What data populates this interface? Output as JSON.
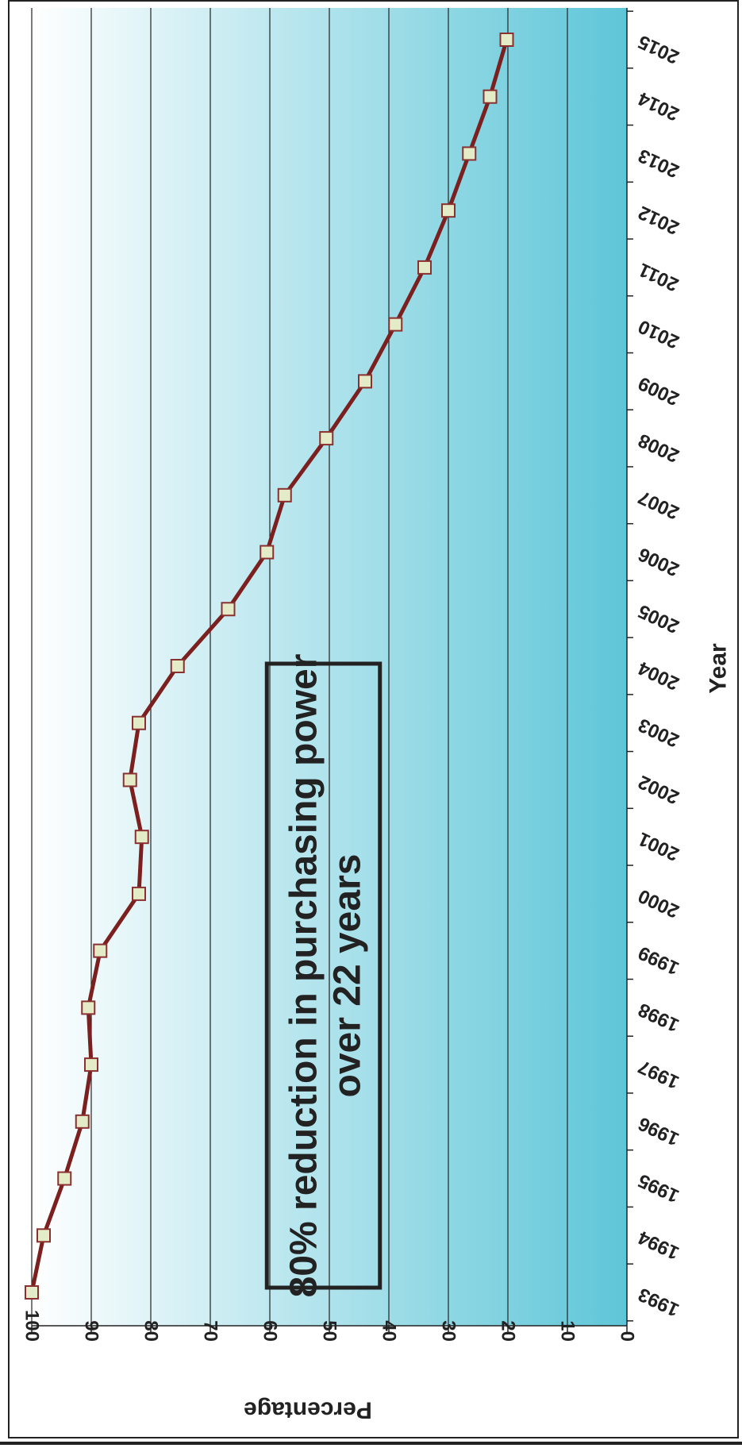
{
  "chart_data": {
    "type": "line",
    "orientation": "rotated-90-clockwise",
    "title": "",
    "xlabel": "Year",
    "ylabel": "Percentage",
    "ylim": [
      0,
      100
    ],
    "yticks": [
      "0",
      "10",
      "20",
      "30",
      "40",
      "50",
      "60",
      "70",
      "80",
      "90",
      "100"
    ],
    "categories": [
      "1993",
      "1994",
      "1995",
      "1996",
      "1997",
      "1998",
      "1999",
      "2000",
      "2001",
      "2002",
      "2003",
      "2004",
      "2005",
      "2006",
      "2007",
      "2008",
      "2009",
      "2010",
      "2011",
      "2012",
      "2013",
      "2014",
      "2015"
    ],
    "series": [
      {
        "values": [
          100,
          98,
          94.5,
          91.5,
          90,
          90.5,
          88.5,
          82,
          81.5,
          83.5,
          82,
          75.5,
          67,
          60.5,
          57.5,
          50.5,
          44,
          38.9,
          34,
          30,
          26.5,
          23,
          20.2
        ],
        "line_color": "#7b1f1f",
        "marker_fill": "#e3ecc6",
        "marker_stroke": "#8b3030"
      }
    ],
    "grid": true,
    "background_gradient": [
      "#ffffff",
      "#5ec6d8"
    ],
    "annotation": {
      "lines": [
        "80% reduction in purchasing power",
        "over 22 years"
      ],
      "box_range": [
        41.5,
        60.5
      ]
    }
  }
}
